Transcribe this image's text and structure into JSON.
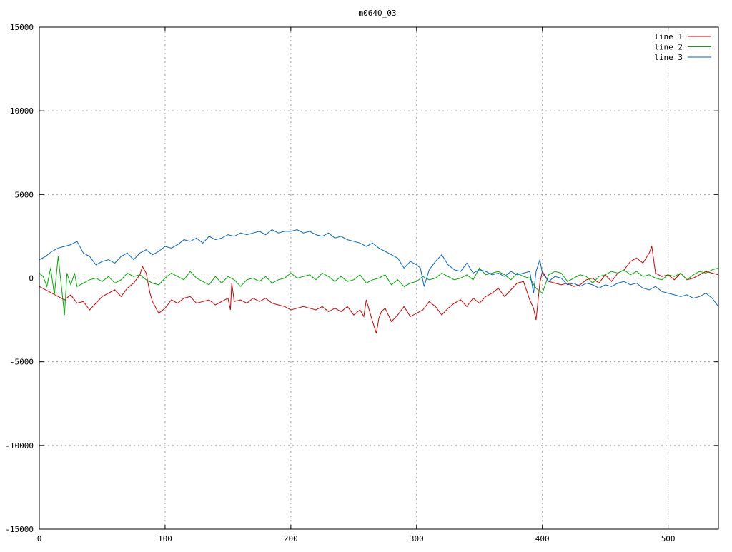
{
  "chart_data": {
    "type": "line",
    "title": "m0640_03",
    "xlim": [
      0,
      540
    ],
    "ylim": [
      -15000,
      15000
    ],
    "x_ticks": [
      0,
      100,
      200,
      300,
      400,
      500
    ],
    "y_ticks": [
      -15000,
      -10000,
      -5000,
      0,
      5000,
      10000,
      15000
    ],
    "x_tick_labels": [
      "0",
      "100",
      "200",
      "300",
      "400",
      "500"
    ],
    "y_tick_labels": [
      "-15000",
      "-10000",
      "-5000",
      "0",
      "5000",
      "10000",
      "15000"
    ],
    "grid": true,
    "legend_position": "top-right",
    "series": [
      {
        "name": "line 1",
        "color": "#cc0000",
        "x": [
          0,
          5,
          10,
          15,
          20,
          25,
          30,
          35,
          40,
          45,
          50,
          55,
          60,
          65,
          70,
          75,
          80,
          82,
          85,
          88,
          90,
          95,
          100,
          105,
          110,
          115,
          120,
          125,
          130,
          135,
          140,
          145,
          150,
          152,
          153,
          155,
          160,
          165,
          170,
          175,
          180,
          185,
          190,
          195,
          200,
          205,
          210,
          215,
          220,
          225,
          230,
          235,
          240,
          245,
          250,
          255,
          258,
          260,
          265,
          268,
          270,
          272,
          275,
          280,
          285,
          290,
          295,
          300,
          305,
          310,
          315,
          320,
          325,
          330,
          335,
          340,
          345,
          350,
          355,
          360,
          365,
          370,
          375,
          380,
          385,
          390,
          393,
          395,
          398,
          400,
          405,
          410,
          415,
          420,
          425,
          430,
          435,
          440,
          445,
          450,
          455,
          460,
          465,
          470,
          475,
          480,
          485,
          487,
          490,
          495,
          500,
          505,
          510,
          515,
          520,
          525,
          530,
          535,
          540
        ],
        "values": [
          -500,
          -700,
          -900,
          -1100,
          -1300,
          -1000,
          -1500,
          -1400,
          -1900,
          -1500,
          -1100,
          -900,
          -700,
          -1100,
          -600,
          -300,
          200,
          700,
          300,
          -900,
          -1400,
          -2100,
          -1800,
          -1300,
          -1500,
          -1200,
          -1100,
          -1500,
          -1400,
          -1300,
          -1600,
          -1400,
          -1200,
          -1900,
          -300,
          -1400,
          -1300,
          -1500,
          -1200,
          -1400,
          -1200,
          -1500,
          -1600,
          -1700,
          -1900,
          -1800,
          -1700,
          -1800,
          -1900,
          -1700,
          -2000,
          -1800,
          -2000,
          -1700,
          -2200,
          -1900,
          -2300,
          -1300,
          -2600,
          -3300,
          -2400,
          -2000,
          -1800,
          -2600,
          -2200,
          -1700,
          -2300,
          -2100,
          -1900,
          -1400,
          -1700,
          -2200,
          -1800,
          -1500,
          -1300,
          -1700,
          -1200,
          -1500,
          -1100,
          -900,
          -600,
          -1100,
          -700,
          -300,
          -200,
          -1300,
          -1800,
          -2500,
          -300,
          400,
          -200,
          -300,
          -400,
          -300,
          -500,
          -400,
          -100,
          0,
          -300,
          200,
          -200,
          300,
          500,
          1000,
          1200,
          900,
          1500,
          1900,
          300,
          100,
          200,
          -100,
          300,
          -100,
          0,
          200,
          400,
          300,
          200
        ]
      },
      {
        "name": "line 2",
        "color": "#00aa00",
        "x": [
          0,
          3,
          6,
          9,
          12,
          15,
          18,
          20,
          22,
          25,
          28,
          30,
          35,
          40,
          45,
          50,
          55,
          60,
          65,
          70,
          75,
          80,
          85,
          90,
          95,
          100,
          105,
          110,
          115,
          120,
          125,
          130,
          135,
          140,
          145,
          150,
          155,
          160,
          165,
          170,
          175,
          180,
          185,
          190,
          195,
          200,
          205,
          210,
          215,
          220,
          225,
          230,
          235,
          240,
          245,
          250,
          255,
          260,
          265,
          270,
          275,
          280,
          285,
          290,
          295,
          300,
          305,
          310,
          315,
          320,
          325,
          330,
          335,
          340,
          345,
          350,
          355,
          360,
          365,
          370,
          375,
          380,
          385,
          390,
          395,
          400,
          405,
          410,
          415,
          420,
          425,
          430,
          435,
          440,
          445,
          450,
          455,
          460,
          465,
          470,
          475,
          480,
          485,
          490,
          495,
          500,
          505,
          510,
          515,
          520,
          525,
          530,
          535,
          540
        ],
        "values": [
          300,
          100,
          -500,
          600,
          -1000,
          1300,
          -800,
          -2200,
          300,
          -400,
          300,
          -500,
          -300,
          -100,
          0,
          -200,
          100,
          -300,
          -100,
          300,
          100,
          200,
          -100,
          -300,
          -400,
          0,
          300,
          100,
          -100,
          400,
          0,
          -200,
          -400,
          100,
          -300,
          100,
          -100,
          -500,
          -100,
          0,
          -200,
          100,
          -300,
          -100,
          0,
          300,
          0,
          100,
          200,
          -100,
          300,
          100,
          -200,
          100,
          -200,
          -100,
          200,
          -300,
          -100,
          0,
          200,
          -400,
          -100,
          -500,
          -300,
          -200,
          100,
          -100,
          0,
          300,
          100,
          -100,
          0,
          200,
          -100,
          600,
          200,
          300,
          400,
          200,
          -100,
          300,
          100,
          0,
          -600,
          -900,
          200,
          400,
          300,
          -200,
          0,
          200,
          100,
          -300,
          100,
          200,
          400,
          300,
          500,
          200,
          400,
          100,
          200,
          0,
          -100,
          200,
          100,
          300,
          -100,
          200,
          400,
          300,
          500,
          600
        ]
      },
      {
        "name": "line 3",
        "color": "#0066cc",
        "x": [
          0,
          5,
          10,
          15,
          20,
          25,
          30,
          35,
          40,
          45,
          50,
          55,
          60,
          65,
          70,
          75,
          80,
          85,
          90,
          95,
          100,
          105,
          110,
          115,
          120,
          125,
          130,
          135,
          140,
          145,
          150,
          155,
          160,
          165,
          170,
          175,
          180,
          185,
          190,
          195,
          200,
          205,
          210,
          215,
          220,
          225,
          230,
          235,
          240,
          245,
          250,
          255,
          260,
          265,
          270,
          275,
          280,
          285,
          290,
          295,
          300,
          303,
          306,
          310,
          315,
          320,
          325,
          330,
          335,
          340,
          345,
          350,
          355,
          360,
          365,
          370,
          375,
          380,
          385,
          390,
          393,
          395,
          398,
          400,
          405,
          410,
          415,
          420,
          425,
          430,
          435,
          440,
          445,
          450,
          455,
          460,
          465,
          470,
          475,
          480,
          485,
          490,
          495,
          500,
          505,
          510,
          515,
          520,
          525,
          530,
          535,
          540
        ],
        "values": [
          1100,
          1300,
          1600,
          1800,
          1900,
          2000,
          2200,
          1500,
          1300,
          800,
          1000,
          1100,
          900,
          1300,
          1500,
          1100,
          1500,
          1700,
          1400,
          1600,
          1900,
          1800,
          2000,
          2300,
          2200,
          2400,
          2100,
          2500,
          2300,
          2400,
          2600,
          2500,
          2700,
          2600,
          2700,
          2800,
          2600,
          2900,
          2700,
          2800,
          2800,
          2900,
          2700,
          2800,
          2600,
          2500,
          2700,
          2400,
          2500,
          2300,
          2200,
          2100,
          1900,
          2100,
          1800,
          1600,
          1400,
          1200,
          600,
          1000,
          800,
          600,
          -500,
          500,
          1000,
          1400,
          800,
          500,
          400,
          900,
          300,
          500,
          400,
          200,
          300,
          100,
          400,
          200,
          300,
          400,
          -900,
          400,
          1100,
          300,
          -200,
          100,
          0,
          -400,
          -300,
          -500,
          -300,
          -400,
          -600,
          -400,
          -500,
          -300,
          -200,
          -400,
          -300,
          -600,
          -700,
          -500,
          -800,
          -900,
          -1000,
          -1100,
          -1000,
          -1200,
          -1100,
          -900,
          -1200,
          -1700
        ]
      }
    ]
  }
}
